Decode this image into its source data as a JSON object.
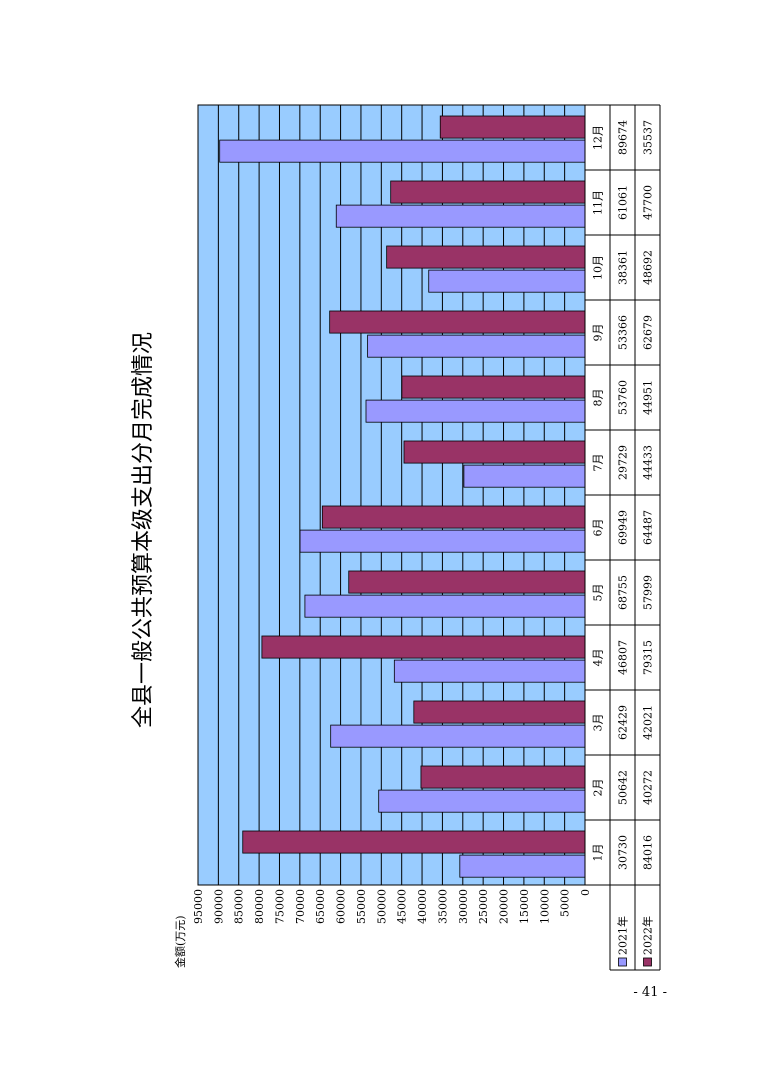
{
  "page": {
    "number": "- 41 -"
  },
  "chart_data": {
    "type": "bar",
    "title": "全县一般公共预算本级支出分月完成情况",
    "ylabel": "金额(万元)",
    "ylim": [
      0,
      95000
    ],
    "ytick_step": 5000,
    "categories": [
      "1月",
      "2月",
      "3月",
      "4月",
      "5月",
      "6月",
      "7月",
      "8月",
      "9月",
      "10月",
      "11月",
      "12月"
    ],
    "series": [
      {
        "name": "2021年",
        "color": "#9999ff",
        "values": [
          30730,
          50642,
          62429,
          46807,
          68755,
          69949,
          29729,
          53760,
          53366,
          38361,
          61061,
          89674
        ]
      },
      {
        "name": "2022年",
        "color": "#993366",
        "values": [
          84016,
          40272,
          42021,
          79315,
          57999,
          64487,
          44433,
          44951,
          62679,
          48692,
          47700,
          35537
        ]
      }
    ],
    "plot_background": "#99ccff",
    "grid": true,
    "legend": "data-table-below",
    "orientation": "rotated-90-ccw"
  }
}
